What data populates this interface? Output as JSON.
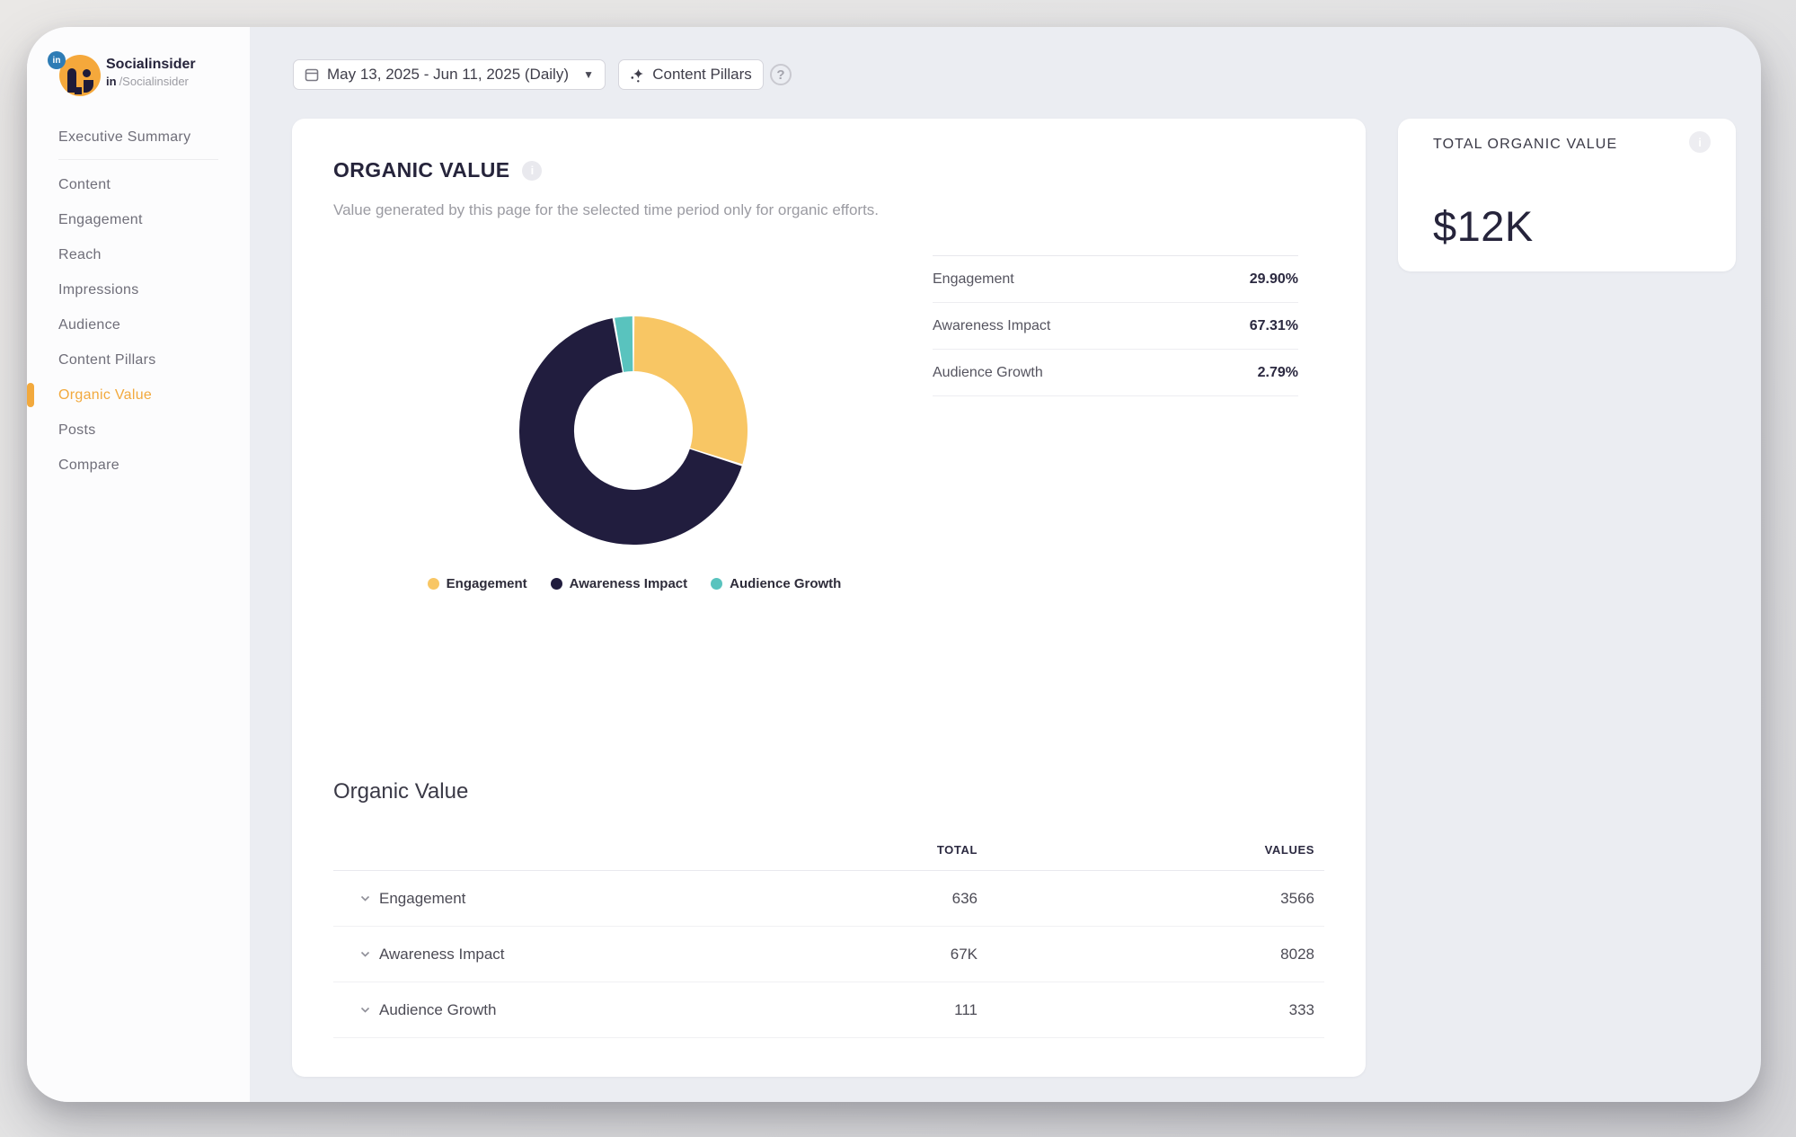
{
  "brand": {
    "name": "Socialinsider",
    "badge": "in",
    "handle_prefix": "in",
    "handle": "/Socialinsider",
    "accent_color": "#F2A93D"
  },
  "sidebar": {
    "items": [
      {
        "label": "Executive Summary",
        "active": false
      },
      {
        "label": "Content",
        "active": false
      },
      {
        "label": "Engagement",
        "active": false
      },
      {
        "label": "Reach",
        "active": false
      },
      {
        "label": "Impressions",
        "active": false
      },
      {
        "label": "Audience",
        "active": false
      },
      {
        "label": "Content Pillars",
        "active": false
      },
      {
        "label": "Organic Value",
        "active": true
      },
      {
        "label": "Posts",
        "active": false
      },
      {
        "label": "Compare",
        "active": false
      }
    ]
  },
  "topbar": {
    "date_range": "May 13, 2025 - Jun 11, 2025 (Daily)",
    "content_pillars_label": "Content Pillars",
    "help_label": "?"
  },
  "main": {
    "title": "ORGANIC VALUE",
    "subtitle": "Value generated by this page for the selected time period only for organic efforts.",
    "section_title": "Organic Value"
  },
  "chart_data": {
    "type": "pie",
    "title": "Organic Value",
    "legend_position": "bottom",
    "donut_hole_ratio": 0.52,
    "start_angle_deg": 0,
    "direction": "clockwise",
    "segments": [
      {
        "label": "Engagement",
        "value": 29.9,
        "pct_label": "29.90%",
        "color": "#F8C664"
      },
      {
        "label": "Awareness Impact",
        "value": 67.31,
        "pct_label": "67.31%",
        "color": "#211D3E"
      },
      {
        "label": "Audience Growth",
        "value": 2.79,
        "pct_label": "2.79%",
        "color": "#59C3BE"
      }
    ]
  },
  "bottom_table": {
    "columns": [
      "TOTAL",
      "VALUES"
    ],
    "rows": [
      {
        "label": "Engagement",
        "total": "636",
        "values": "3566"
      },
      {
        "label": "Awareness Impact",
        "total": "67K",
        "values": "8028"
      },
      {
        "label": "Audience Growth",
        "total": "111",
        "values": "333"
      }
    ]
  },
  "total_card": {
    "title": "TOTAL ORGANIC VALUE",
    "value": "$12K"
  }
}
